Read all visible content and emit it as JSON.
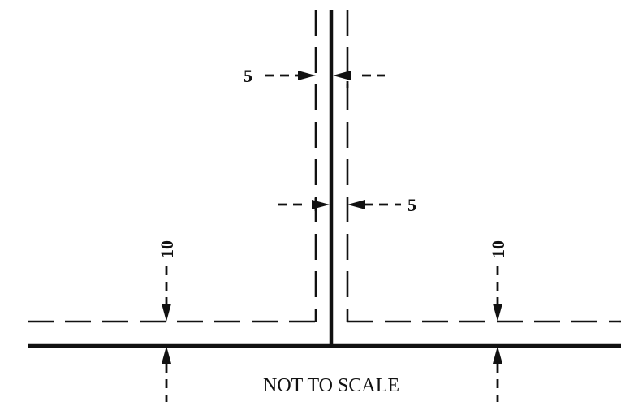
{
  "dimensions": {
    "upper_offset": "5",
    "lower_offset": "5",
    "left_offset": "10",
    "right_offset": "10"
  },
  "note": "NOT TO SCALE"
}
